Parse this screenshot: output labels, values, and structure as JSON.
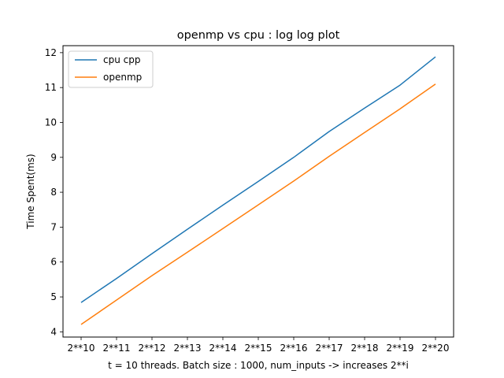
{
  "chart_data": {
    "type": "line",
    "title": "openmp vs cpu : log log plot",
    "xlabel": "t = 10 threads. Batch size : 1000, num_inputs -> increases 2**i",
    "ylabel": "Time Spent(ms)",
    "categories": [
      "2**10",
      "2**11",
      "2**12",
      "2**13",
      "2**14",
      "2**15",
      "2**16",
      "2**17",
      "2**18",
      "2**19",
      "2**20"
    ],
    "ylim": [
      3.85,
      12.2
    ],
    "yticks": [
      4,
      5,
      6,
      7,
      8,
      9,
      10,
      11,
      12
    ],
    "grid": false,
    "legend_position": "top-left",
    "series": [
      {
        "name": "cpu cpp",
        "color": "#1f77b4",
        "values": [
          4.84,
          5.53,
          6.24,
          6.94,
          7.63,
          8.31,
          9.0,
          9.74,
          10.41,
          11.07,
          11.88
        ]
      },
      {
        "name": "openmp",
        "color": "#ff7f0e",
        "values": [
          4.21,
          4.91,
          5.61,
          6.28,
          6.96,
          7.64,
          8.32,
          9.03,
          9.71,
          10.39,
          11.1
        ]
      }
    ]
  }
}
